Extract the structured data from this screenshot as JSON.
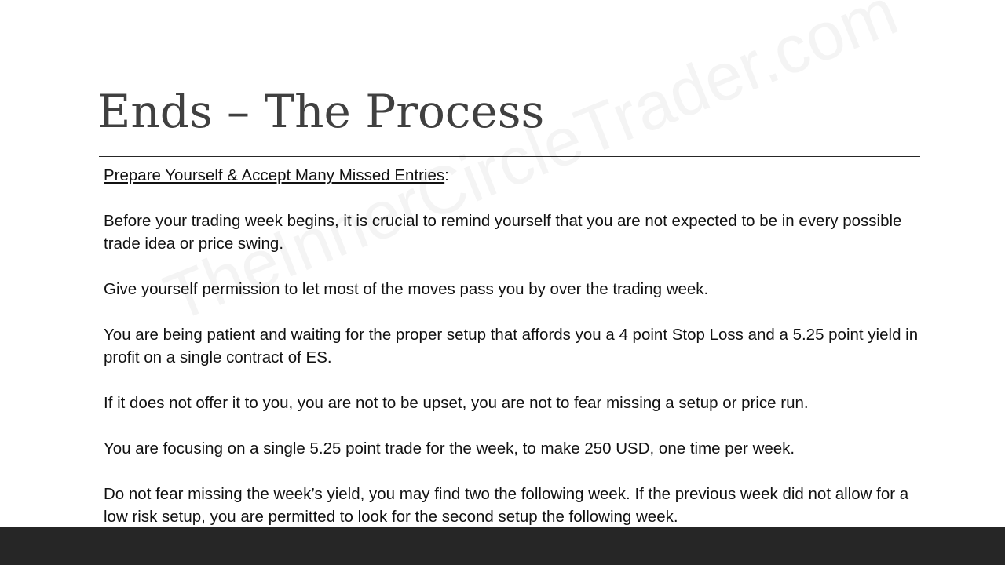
{
  "slide": {
    "title": "Ends – The Process",
    "watermark": "TheInnerCircleTrader.com",
    "heading": "Prepare Yourself & Accept Many Missed Entries",
    "heading_suffix": ":",
    "paragraphs": [
      "Before your trading week begins, it is crucial to remind yourself that you are not expected to be in every possible trade idea or price swing.",
      "Give yourself permission to let most of the moves pass you by over the trading week.",
      "You are being patient and waiting for the proper setup that affords you a 4 point Stop Loss and a 5.25 point yield in profit on a single contract of ES.",
      "If it does not offer it to you, you are not to be upset, you are not to fear missing a setup or price run.",
      "You are focusing on a single 5.25 point trade for the week, to make 250 USD, one time per week.",
      "Do not fear missing the week’s yield, you may find two the following week.  If the previous week did not allow for a low risk setup, you are permitted to look for the second setup the following week."
    ]
  },
  "colors": {
    "title": "#404040",
    "rule": "#262626",
    "body_text": "#111111",
    "bottom_bar": "#262626"
  }
}
